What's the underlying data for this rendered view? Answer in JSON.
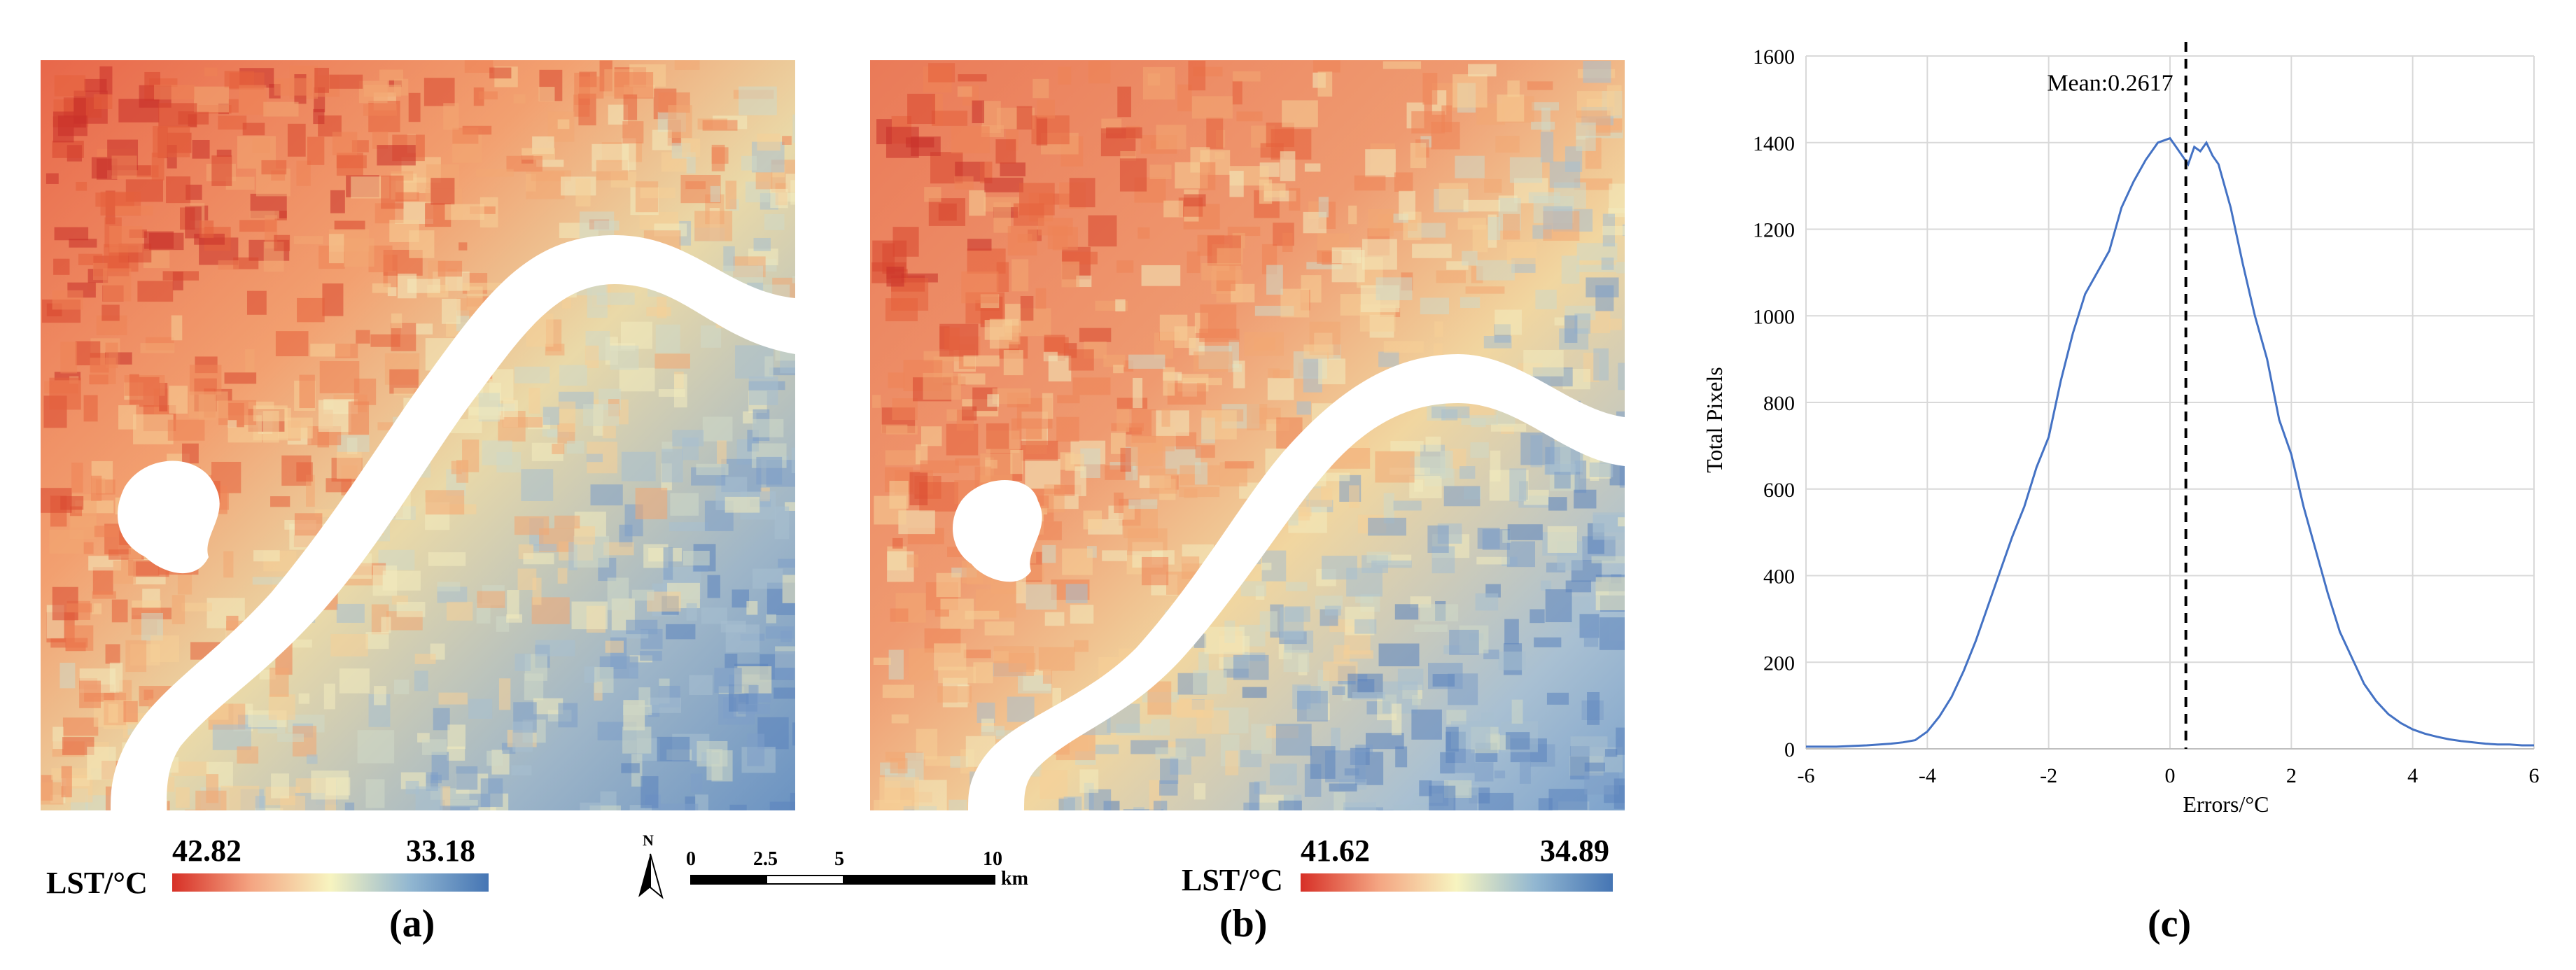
{
  "panels": {
    "a": {
      "label": "(a)",
      "legend_title": "LST/°C",
      "legend_high": "42.82",
      "legend_low": "33.18"
    },
    "b": {
      "label": "(b)",
      "legend_title": "LST/°C",
      "legend_high": "41.62",
      "legend_low": "34.89"
    },
    "c": {
      "label": "(c)"
    }
  },
  "scalebar": {
    "ticks": [
      "0",
      "2.5",
      "5",
      "10"
    ],
    "unit": "km",
    "north": "N"
  },
  "colors": {
    "hot": "#d73027",
    "mid": "#f5f3c0",
    "cool": "#4575b4",
    "river": "#ffffff",
    "line": "#4472c4"
  },
  "chart_data": {
    "type": "line",
    "xlabel": "Errors/°C",
    "ylabel": "Total Pixels",
    "xlim": [
      -6,
      6
    ],
    "ylim": [
      0,
      1600
    ],
    "xticks": [
      "-6",
      "-4",
      "-2",
      "0",
      "2",
      "4",
      "6"
    ],
    "yticks": [
      "0",
      "200",
      "400",
      "600",
      "800",
      "1000",
      "1200",
      "1400",
      "1600"
    ],
    "grid": true,
    "mean_value": 0.2617,
    "mean_label": "Mean:0.2617",
    "series": [
      {
        "x": [
          -6,
          -5.5,
          -5,
          -4.6,
          -4.4,
          -4.2,
          -4.0,
          -3.8,
          -3.6,
          -3.4,
          -3.2,
          -3.0,
          -2.8,
          -2.6,
          -2.4,
          -2.2,
          -2.0,
          -1.8,
          -1.6,
          -1.4,
          -1.2,
          -1.0,
          -0.8,
          -0.6,
          -0.4,
          -0.2,
          0.0,
          0.1,
          0.2,
          0.3,
          0.4,
          0.5,
          0.6,
          0.7,
          0.8,
          1.0,
          1.2,
          1.4,
          1.6,
          1.8,
          2.0,
          2.2,
          2.4,
          2.6,
          2.8,
          3.0,
          3.2,
          3.4,
          3.6,
          3.8,
          4.0,
          4.2,
          4.4,
          4.6,
          4.8,
          5.0,
          5.2,
          5.4,
          5.6,
          5.8,
          6.0
        ],
        "values": [
          5,
          5,
          8,
          12,
          15,
          20,
          40,
          75,
          120,
          180,
          250,
          330,
          410,
          490,
          560,
          650,
          720,
          850,
          960,
          1050,
          1100,
          1150,
          1250,
          1310,
          1360,
          1400,
          1410,
          1390,
          1370,
          1350,
          1390,
          1380,
          1400,
          1370,
          1350,
          1250,
          1120,
          1000,
          900,
          760,
          680,
          560,
          460,
          360,
          270,
          210,
          150,
          110,
          80,
          60,
          45,
          35,
          28,
          22,
          18,
          15,
          12,
          10,
          10,
          8,
          8
        ]
      }
    ]
  }
}
